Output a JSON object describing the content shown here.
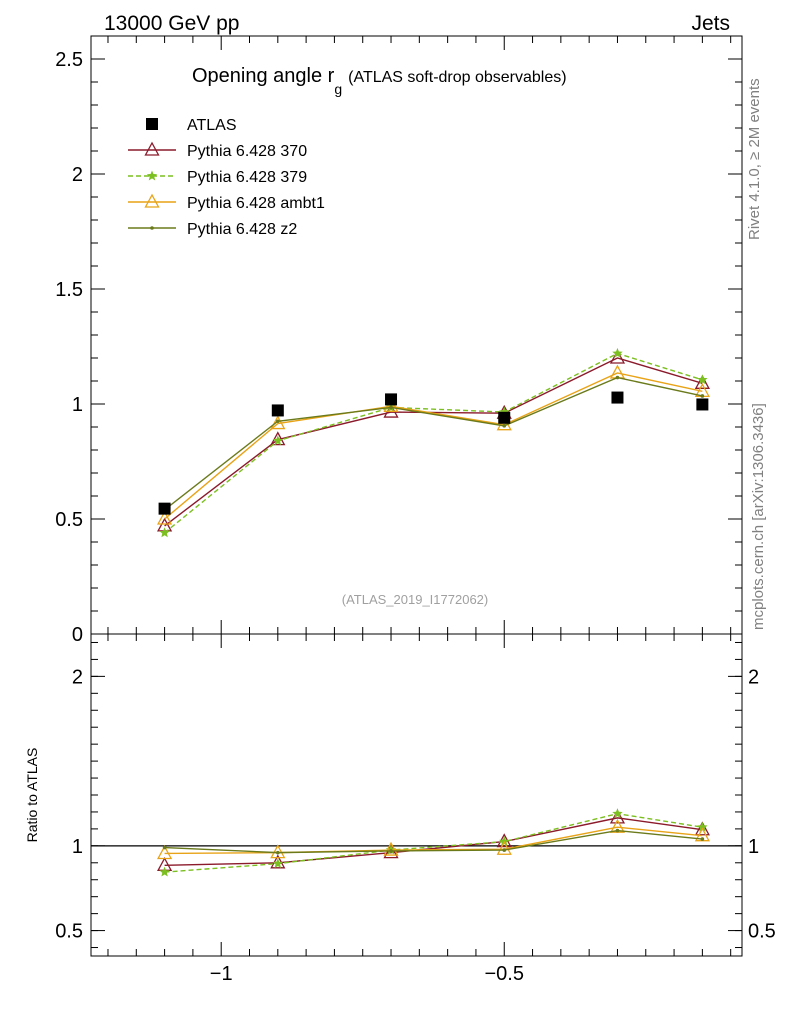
{
  "header": {
    "left": "13000 GeV pp",
    "right": "Jets"
  },
  "side_labels": {
    "rivet": "Rivet 4.1.0, ≥ 2M events",
    "mcplots": "mcplots.cern.ch [arXiv:1306.3436]"
  },
  "chart_data": [
    {
      "type": "line",
      "panel": "main",
      "title_main": "Opening angle r",
      "title_sub": "g",
      "title_suffix": "(ATLAS soft-drop observables)",
      "analysis_label": "(ATLAS_2019_I1772062)",
      "xlabel": "",
      "ylabel": "",
      "xlim": [
        -1.23,
        -0.08
      ],
      "ylim": [
        0,
        2.6
      ],
      "yticks": [
        0,
        0.5,
        1,
        1.5,
        2,
        2.5
      ],
      "ytick_labels": [
        "0",
        "0.5",
        "1",
        "1.5",
        "2",
        "2.5"
      ],
      "x": [
        -1.1,
        -0.9,
        -0.7,
        -0.5,
        -0.3,
        -0.15
      ],
      "series": [
        {
          "name": "ATLAS",
          "color": "#000000",
          "marker": "square",
          "style": "none",
          "values": [
            0.545,
            0.972,
            1.02,
            0.94,
            1.028,
            0.998
          ]
        },
        {
          "name": "Pythia 6.428 370",
          "color": "#8b1a2b",
          "marker": "open-triangle",
          "style": "solid",
          "values": [
            0.47,
            0.845,
            0.965,
            0.96,
            1.2,
            1.09
          ]
        },
        {
          "name": "Pythia 6.428 379",
          "color": "#7cbf20",
          "marker": "star",
          "style": "dashed",
          "values": [
            0.44,
            0.84,
            0.985,
            0.965,
            1.22,
            1.105
          ]
        },
        {
          "name": "Pythia 6.428 ambt1",
          "color": "#e8a317",
          "marker": "open-triangle",
          "style": "solid",
          "values": [
            0.5,
            0.915,
            0.99,
            0.91,
            1.135,
            1.055
          ]
        },
        {
          "name": "Pythia 6.428 z2",
          "color": "#6b7a1a",
          "marker": "dot",
          "style": "solid",
          "values": [
            0.54,
            0.925,
            0.985,
            0.905,
            1.115,
            1.035
          ]
        }
      ]
    },
    {
      "type": "line",
      "panel": "ratio",
      "ylabel": "Ratio to ATLAS",
      "xlim": [
        -1.23,
        -0.08
      ],
      "ylim": [
        0.35,
        2.25
      ],
      "yticks": [
        0.5,
        1,
        2
      ],
      "ytick_labels": [
        "0.5",
        "1",
        "2"
      ],
      "xticks": [
        -1,
        -0.5
      ],
      "xtick_labels": [
        "−1",
        "−0.5"
      ],
      "x": [
        -1.1,
        -0.9,
        -0.7,
        -0.5,
        -0.3,
        -0.15
      ],
      "reference": 1,
      "series": [
        {
          "name": "Pythia 6.428 370",
          "color": "#8b1a2b",
          "marker": "open-triangle",
          "style": "solid",
          "values": [
            0.885,
            0.9,
            0.96,
            1.025,
            1.165,
            1.095
          ]
        },
        {
          "name": "Pythia 6.428 379",
          "color": "#7cbf20",
          "marker": "star",
          "style": "dashed",
          "values": [
            0.845,
            0.895,
            0.975,
            1.025,
            1.19,
            1.11
          ]
        },
        {
          "name": "Pythia 6.428 ambt1",
          "color": "#e8a317",
          "marker": "open-triangle",
          "style": "solid",
          "values": [
            0.955,
            0.96,
            0.975,
            0.98,
            1.11,
            1.06
          ]
        },
        {
          "name": "Pythia 6.428 z2",
          "color": "#6b7a1a",
          "marker": "dot",
          "style": "solid",
          "values": [
            0.99,
            0.96,
            0.97,
            0.975,
            1.09,
            1.04
          ]
        }
      ]
    }
  ]
}
